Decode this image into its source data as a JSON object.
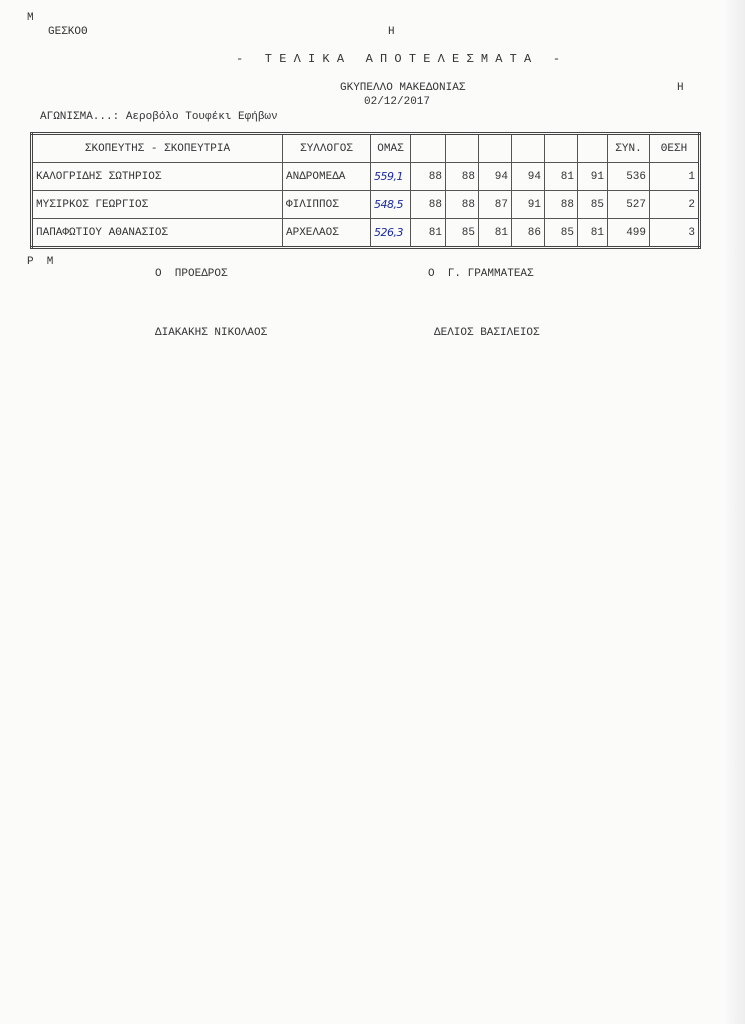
{
  "header": {
    "corner_mark": "M",
    "org_code": "GEΣKOΘ",
    "mark_h1": "H",
    "title": "-   Τ Ε Λ Ι Κ Α   Α Π Ο Τ Ε Λ Ε Σ Μ Α Τ Α   -",
    "venue": "GKΥΠΕΛΛΟ ΜΑΚΕΔΟΝΙΑΣ",
    "mark_h2": "H",
    "date": "02/12/2017",
    "event": "ΑΓΩΝΙΣΜΑ...: Αεροβόλο Τουφέκι Εφήβων"
  },
  "table": {
    "columns": [
      "ΣΚΟΠΕΥΤΗΣ - ΣΚΟΠΕΥΤΡΙΑ",
      "ΣΥΛΛΟΓΟΣ",
      "ΟΜΑΣ",
      "",
      "",
      "",
      "",
      "",
      "",
      "ΣΥΝ.",
      "ΘΕΣΗ"
    ],
    "rows": [
      {
        "name": "ΚΑΛΟΓΡΙΔΗΣ ΣΩΤΗΡΙΟΣ",
        "club": "ΑΝΔΡΟΜΕΔΑ",
        "omas": "559,1",
        "series": [
          "88",
          "88",
          "94",
          "94",
          "81",
          "91"
        ],
        "total": "536",
        "place": "1"
      },
      {
        "name": "ΜΥΣΙΡΚΟΣ ΓΕΩΡΓΙΟΣ",
        "club": "ΦΙΛΙΠΠΟΣ",
        "omas": "548,5",
        "series": [
          "88",
          "88",
          "87",
          "91",
          "88",
          "85"
        ],
        "total": "527",
        "place": "2"
      },
      {
        "name": "ΠΑΠΑΦΩΤΙΟΥ ΑΘΑΝΑΣΙΟΣ",
        "club": "ΑΡΧΕΛΑΟΣ",
        "omas": "526,3",
        "series": [
          "81",
          "85",
          "81",
          "86",
          "85",
          "81"
        ],
        "total": "499",
        "place": "3"
      }
    ]
  },
  "footer": {
    "mark": "P  M",
    "president_title": "Ο  ΠΡΟΕΔΡΟΣ",
    "secretary_title": "Ο  Γ. ΓΡΑΜΜΑΤΕΑΣ",
    "president_name": "ΔΙΑΚΑΚΗΣ ΝΙΚΟΛΑΟΣ",
    "secretary_name": "ΔΕΛΙΟΣ ΒΑΣΙΛΕΙΟΣ"
  }
}
